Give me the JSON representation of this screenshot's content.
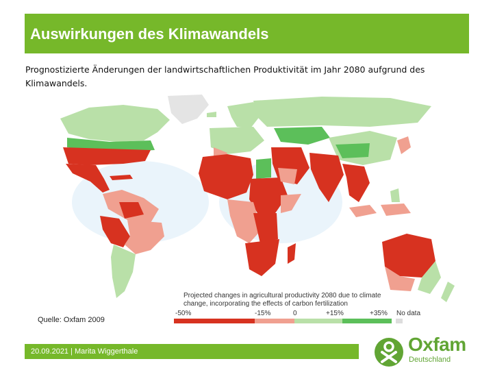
{
  "slide": {
    "title": "Auswirkungen des Klimawandels",
    "subtitle": "Prognostizierte Änderungen der landwirtschaftlichen Produktivität im Jahr 2080 aufgrund des Klimawandels.",
    "source": "Quelle: Oxfam 2009",
    "footer": "20.09.2021 | Marita Wiggerthale"
  },
  "map": {
    "legend_title": "Projected changes in agricultural productivity 2080 due to climate change, incorporating the effects of carbon fertilization",
    "legend": [
      {
        "label": "-50%",
        "color": "#d73220"
      },
      {
        "label": "-15%",
        "color": "#f0a090"
      },
      {
        "label": "0",
        "color": "#f7cfc2"
      },
      {
        "label": "+15%",
        "color": "#b9e0a8"
      },
      {
        "label": "+35%",
        "color": "#5cbf5a"
      },
      {
        "label": "No data",
        "color": "#dddddd"
      }
    ],
    "colors": {
      "ocean": "#e8f3fa",
      "strong_loss": "#d73220",
      "moderate_loss": "#f0a090",
      "slight_loss": "#f7cfc2",
      "slight_gain": "#b9e0a8",
      "strong_gain": "#5cbf5a",
      "no_data": "#dddddd"
    }
  },
  "logo": {
    "name": "Oxfam",
    "subtitle": "Deutschland",
    "color": "#61a534",
    "icon": "oxfam-figure-icon"
  }
}
